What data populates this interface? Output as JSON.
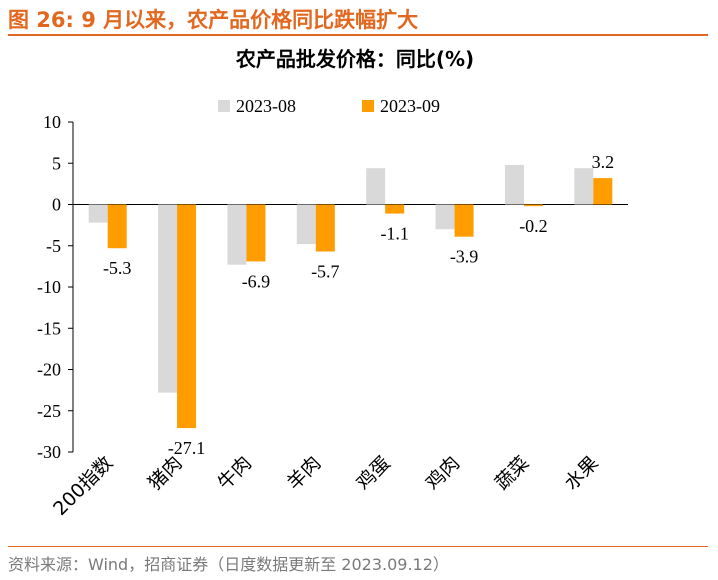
{
  "figure_title": "图 26:  9 月以来，农产品价格同比跌幅扩大",
  "source_note": "资料来源：Wind，招商证券（日度数据更新至 2023.09.12）",
  "colors": {
    "accent": "#e2681f",
    "series_2023_08": "#d9d9d9",
    "series_2023_09": "#ff9c00"
  },
  "chart_data": {
    "type": "bar",
    "title": "农产品批发价格：同比(%)",
    "xlabel": "",
    "ylabel": "",
    "ylim": [
      -30,
      10
    ],
    "yticks": [
      10,
      5,
      0,
      -5,
      -10,
      -15,
      -20,
      -25,
      -30
    ],
    "grid": false,
    "legend_position": "top",
    "categories": [
      "200指数",
      "猪肉",
      "牛肉",
      "羊肉",
      "鸡蛋",
      "鸡肉",
      "蔬菜",
      "水果"
    ],
    "series": [
      {
        "name": "2023-08",
        "values": [
          -2.2,
          -22.8,
          -7.3,
          -4.8,
          4.4,
          -3.0,
          4.8,
          4.4
        ]
      },
      {
        "name": "2023-09",
        "values": [
          -5.3,
          -27.1,
          -6.9,
          -5.7,
          -1.1,
          -3.9,
          -0.2,
          3.2
        ]
      }
    ],
    "data_labels": [
      "-5.3",
      "-27.1",
      "-6.9",
      "-5.7",
      "-1.1",
      "-3.9",
      "-0.2",
      "3.2"
    ]
  }
}
